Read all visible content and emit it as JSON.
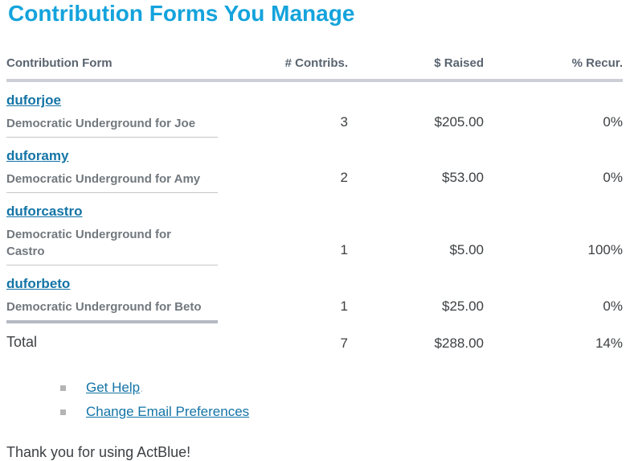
{
  "page_title": "Contribution Forms You Manage",
  "table": {
    "headers": {
      "form": "Contribution Form",
      "contribs": "# Contribs.",
      "raised": "$ Raised",
      "recur": "% Recur."
    },
    "rows": [
      {
        "slug": "duforjoe",
        "name": "Democratic Underground for Joe",
        "contribs": "3",
        "raised": "$205.00",
        "recur": "0%"
      },
      {
        "slug": "duforamy",
        "name": "Democratic Underground for Amy",
        "contribs": "2",
        "raised": "$53.00",
        "recur": "0%"
      },
      {
        "slug": "duforcastro",
        "name": "Democratic Underground for Castro",
        "contribs": "1",
        "raised": "$5.00",
        "recur": "100%"
      },
      {
        "slug": "duforbeto",
        "name": "Democratic Underground for Beto",
        "contribs": "1",
        "raised": "$25.00",
        "recur": "0%"
      }
    ],
    "total": {
      "label": "Total",
      "contribs": "7",
      "raised": "$288.00",
      "recur": "14%"
    }
  },
  "footer_links": [
    {
      "label": "Get Help",
      "suffix": "."
    },
    {
      "label": "Change Email Preferences",
      "suffix": ""
    }
  ],
  "thanks_message": "Thank you for using ActBlue!",
  "colors": {
    "title": "#14a3dc",
    "link": "#1374a6",
    "header_text": "#5a6470",
    "subtitle_text": "#71787e",
    "body_text": "#3d4043",
    "header_rule": "#ccd0d6",
    "row_rule": "#c6c6c6",
    "last_row_rule": "#b4bac1",
    "bullet": "#b4b4b4"
  }
}
